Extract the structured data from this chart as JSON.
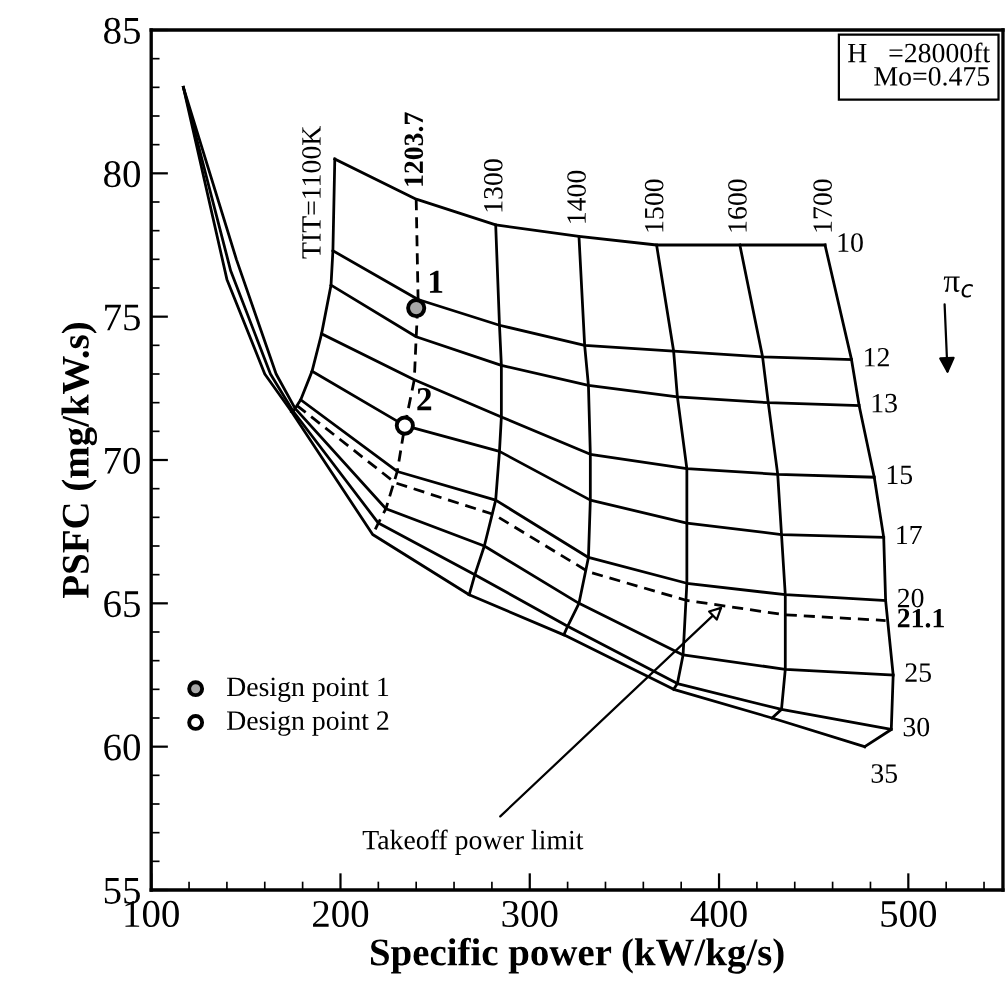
{
  "chart_data": {
    "type": "line",
    "xlabel": "Specific power (kW/kg/s)",
    "ylabel": "PSFC (mg/kW.s)",
    "xlim": [
      100,
      550
    ],
    "xticks": [
      100,
      200,
      300,
      400,
      500
    ],
    "ylim": [
      55,
      85
    ],
    "yticks": [
      55,
      60,
      65,
      70,
      75,
      80,
      85
    ],
    "grid": false,
    "legend": "bottom left",
    "series": [
      {
        "name": "TIT=1100K",
        "color": "#000000",
        "x": [
          197,
          196,
          195,
          190,
          185,
          179,
          176,
          175,
          174
        ],
        "values": [
          80.5,
          77.3,
          76.1,
          74.4,
          73.1,
          72.1,
          71.8,
          71.7,
          71.7
        ]
      },
      {
        "name": "1203.7",
        "color": "#000000",
        "line_style": "dashed",
        "x": [
          240,
          241,
          240,
          239,
          234,
          230,
          224,
          220,
          217
        ],
        "values": [
          79.1,
          75.6,
          74.3,
          72.8,
          71.2,
          69.6,
          68.3,
          67.8,
          67.4
        ]
      },
      {
        "name": "1300",
        "color": "#000000",
        "x": [
          282,
          284,
          285,
          285,
          284,
          282,
          276,
          271,
          268
        ],
        "values": [
          78.2,
          74.7,
          73.3,
          71.5,
          70.3,
          68.6,
          67.0,
          66.0,
          65.3
        ]
      },
      {
        "name": "1400",
        "color": "#000000",
        "x": [
          326,
          329,
          331,
          332,
          332,
          331,
          326,
          320,
          318
        ],
        "values": [
          77.8,
          74.0,
          72.6,
          70.2,
          68.6,
          66.6,
          65.0,
          64.2,
          63.9
        ]
      },
      {
        "name": "1500",
        "color": "#000000",
        "x": [
          367,
          376,
          378,
          383,
          383,
          383,
          381,
          378,
          376
        ],
        "values": [
          77.5,
          73.8,
          72.2,
          69.7,
          67.8,
          65.7,
          63.2,
          62.2,
          62.0
        ]
      },
      {
        "name": "1600",
        "color": "#000000",
        "x": [
          411,
          423,
          426,
          431,
          433,
          435,
          435,
          433,
          428
        ],
        "values": [
          77.5,
          73.6,
          72.0,
          69.5,
          67.4,
          65.3,
          62.7,
          61.3,
          61.0
        ]
      },
      {
        "name": "1700",
        "color": "#000000",
        "x": [
          456,
          470,
          474,
          482,
          487,
          488,
          492,
          491,
          477
        ],
        "values": [
          77.5,
          73.5,
          71.9,
          69.4,
          67.3,
          65.1,
          62.5,
          60.6,
          60.0
        ]
      },
      {
        "name": "10",
        "color": "#000000",
        "x": [
          197,
          240,
          282,
          326,
          367,
          411,
          456
        ],
        "values": [
          80.5,
          79.1,
          78.2,
          77.8,
          77.5,
          77.5,
          77.5
        ]
      },
      {
        "name": "12",
        "color": "#000000",
        "x": [
          196,
          241,
          284,
          329,
          376,
          423,
          470
        ],
        "values": [
          77.3,
          75.6,
          74.7,
          74.0,
          73.8,
          73.6,
          73.5
        ]
      },
      {
        "name": "13",
        "color": "#000000",
        "x": [
          195,
          240,
          285,
          331,
          378,
          426,
          474
        ],
        "values": [
          76.1,
          74.3,
          73.3,
          72.6,
          72.2,
          72.0,
          71.9
        ]
      },
      {
        "name": "15",
        "color": "#000000",
        "x": [
          190,
          239,
          285,
          332,
          383,
          431,
          482
        ],
        "values": [
          74.4,
          72.8,
          71.5,
          70.2,
          69.7,
          69.5,
          69.4
        ]
      },
      {
        "name": "17",
        "color": "#000000",
        "x": [
          185,
          234,
          284,
          332,
          383,
          433,
          487
        ],
        "values": [
          73.1,
          71.2,
          70.3,
          68.6,
          67.8,
          67.4,
          67.3
        ]
      },
      {
        "name": "20",
        "color": "#000000",
        "x": [
          179,
          230,
          282,
          331,
          383,
          435,
          488
        ],
        "values": [
          72.1,
          69.6,
          68.6,
          66.6,
          65.7,
          65.3,
          65.1
        ]
      },
      {
        "name": "21.1",
        "color": "#000000",
        "line_style": "dashed",
        "x": [
          177,
          229,
          281,
          331,
          383,
          435,
          488
        ],
        "values": [
          71.9,
          69.2,
          68.1,
          66.1,
          65.1,
          64.6,
          64.4
        ]
      },
      {
        "name": "25",
        "color": "#000000",
        "x": [
          117,
          145,
          166,
          176,
          224,
          276,
          326,
          381,
          435,
          492
        ],
        "values": [
          83,
          77.0,
          73.0,
          71.8,
          68.3,
          67.0,
          65.0,
          63.2,
          62.7,
          62.5
        ]
      },
      {
        "name": "30",
        "color": "#000000",
        "x": [
          117,
          142,
          163,
          175,
          220,
          271,
          320,
          378,
          433,
          491
        ],
        "values": [
          83,
          76.6,
          73.0,
          71.7,
          67.8,
          66.0,
          64.2,
          62.2,
          61.3,
          60.6
        ]
      },
      {
        "name": "35",
        "color": "#000000",
        "x": [
          117,
          140,
          160,
          174,
          217,
          268,
          318,
          376,
          428,
          477
        ],
        "values": [
          83,
          76.3,
          73.0,
          71.7,
          67.4,
          65.3,
          63.9,
          62.0,
          61.0,
          60.0
        ]
      },
      {
        "name": "Design point 1",
        "type": "scatter",
        "marker": "circle",
        "color": "#a8a8a8",
        "x": [
          240
        ],
        "values": [
          75.3
        ]
      },
      {
        "name": "Design point 2",
        "type": "scatter",
        "marker": "circle",
        "color": "#ffffff",
        "x": [
          234
        ],
        "values": [
          71.2
        ]
      }
    ],
    "annotations": [
      "H   =28000ft\nMo=0.475",
      "π$_{c}$",
      {
        "text": "1",
        "x": 240,
        "y": 75.3
      },
      {
        "text": "2",
        "x": 234,
        "y": 71.2
      },
      {
        "text": "Takeoff power limit",
        "x": 402,
        "y": 64.9
      }
    ]
  }
}
